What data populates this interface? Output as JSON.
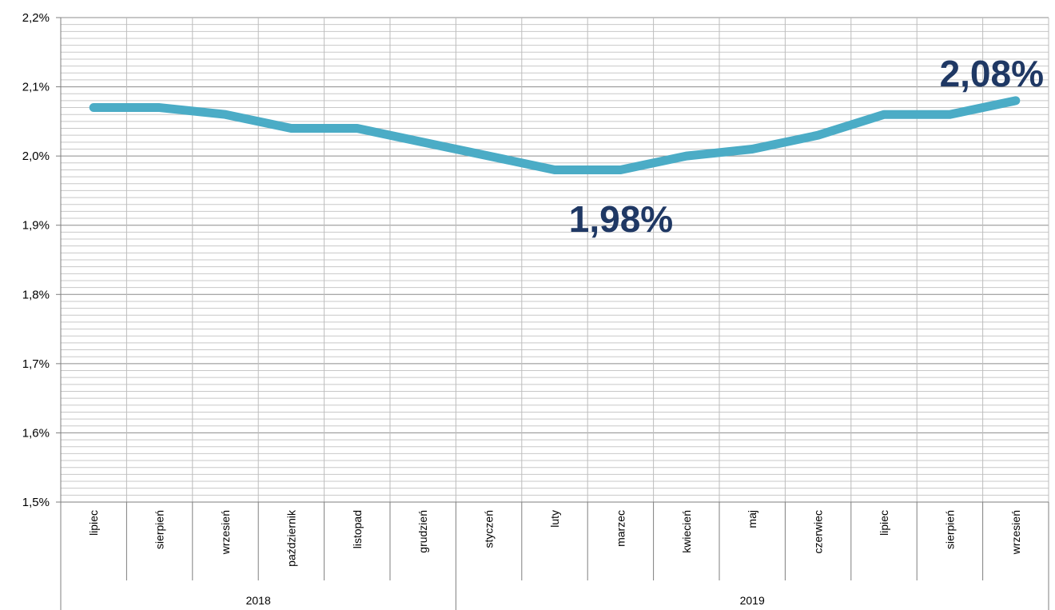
{
  "chart_data": {
    "type": "line",
    "categories": [
      "lipiec",
      "sierpień",
      "wrzesień",
      "październik",
      "listopad",
      "grudzień",
      "styczeń",
      "luty",
      "marzec",
      "kwiecień",
      "maj",
      "czerwiec",
      "lipiec",
      "sierpień",
      "wrzesień"
    ],
    "groups": [
      {
        "label": "2018",
        "span": 6
      },
      {
        "label": "2019",
        "span": 9
      }
    ],
    "series": [
      {
        "values": [
          2.07,
          2.07,
          2.06,
          2.04,
          2.04,
          2.02,
          2.0,
          1.98,
          1.98,
          2.0,
          2.01,
          2.03,
          2.06,
          2.06,
          2.08
        ]
      }
    ],
    "y_ticks": [
      "1,5%",
      "1,6%",
      "1,7%",
      "1,8%",
      "1,9%",
      "2,0%",
      "2,1%",
      "2,2%"
    ],
    "ylim": [
      1.5,
      2.2
    ],
    "grid": true,
    "line_color": "#4bacc6",
    "annotations": [
      {
        "text": "1,98%",
        "index": 7,
        "value": 1.98
      },
      {
        "text": "2,08%",
        "index": 14,
        "value": 2.08
      }
    ],
    "title": "",
    "xlabel": "",
    "ylabel": ""
  }
}
